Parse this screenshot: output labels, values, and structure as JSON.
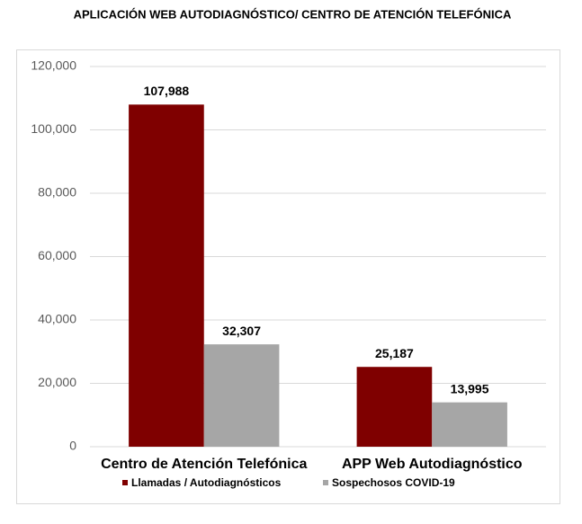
{
  "chart_data": {
    "type": "bar",
    "title": "APLICACIÓN WEB AUTODIAGNÓSTICO/ CENTRO DE ATENCIÓN TELEFÓNICA",
    "categories": [
      "Centro de Atención Telefónica",
      "APP Web Autodiagnóstico"
    ],
    "series": [
      {
        "name": "Llamadas / Autodiagnósticos",
        "color": "#7f0000",
        "values": [
          107988,
          25187
        ],
        "value_labels": [
          "107,988",
          "25,187"
        ]
      },
      {
        "name": "Sospechosos COVID-19",
        "color": "#a6a6a6",
        "values": [
          32307,
          13995
        ],
        "value_labels": [
          "32,307",
          "13,995"
        ]
      }
    ],
    "ylim": [
      0,
      120000
    ],
    "yticks": [
      0,
      {
        "value": 20000,
        "label": "20,000"
      },
      {
        "value": 40000,
        "label": "40,000"
      },
      {
        "value": 60000,
        "label": "60,000"
      },
      {
        "value": 80000,
        "label": "80,000"
      },
      {
        "value": 100000,
        "label": "100,000"
      },
      {
        "value": 120000,
        "label": "120,000"
      }
    ],
    "grid": true,
    "legend": "bottom"
  }
}
